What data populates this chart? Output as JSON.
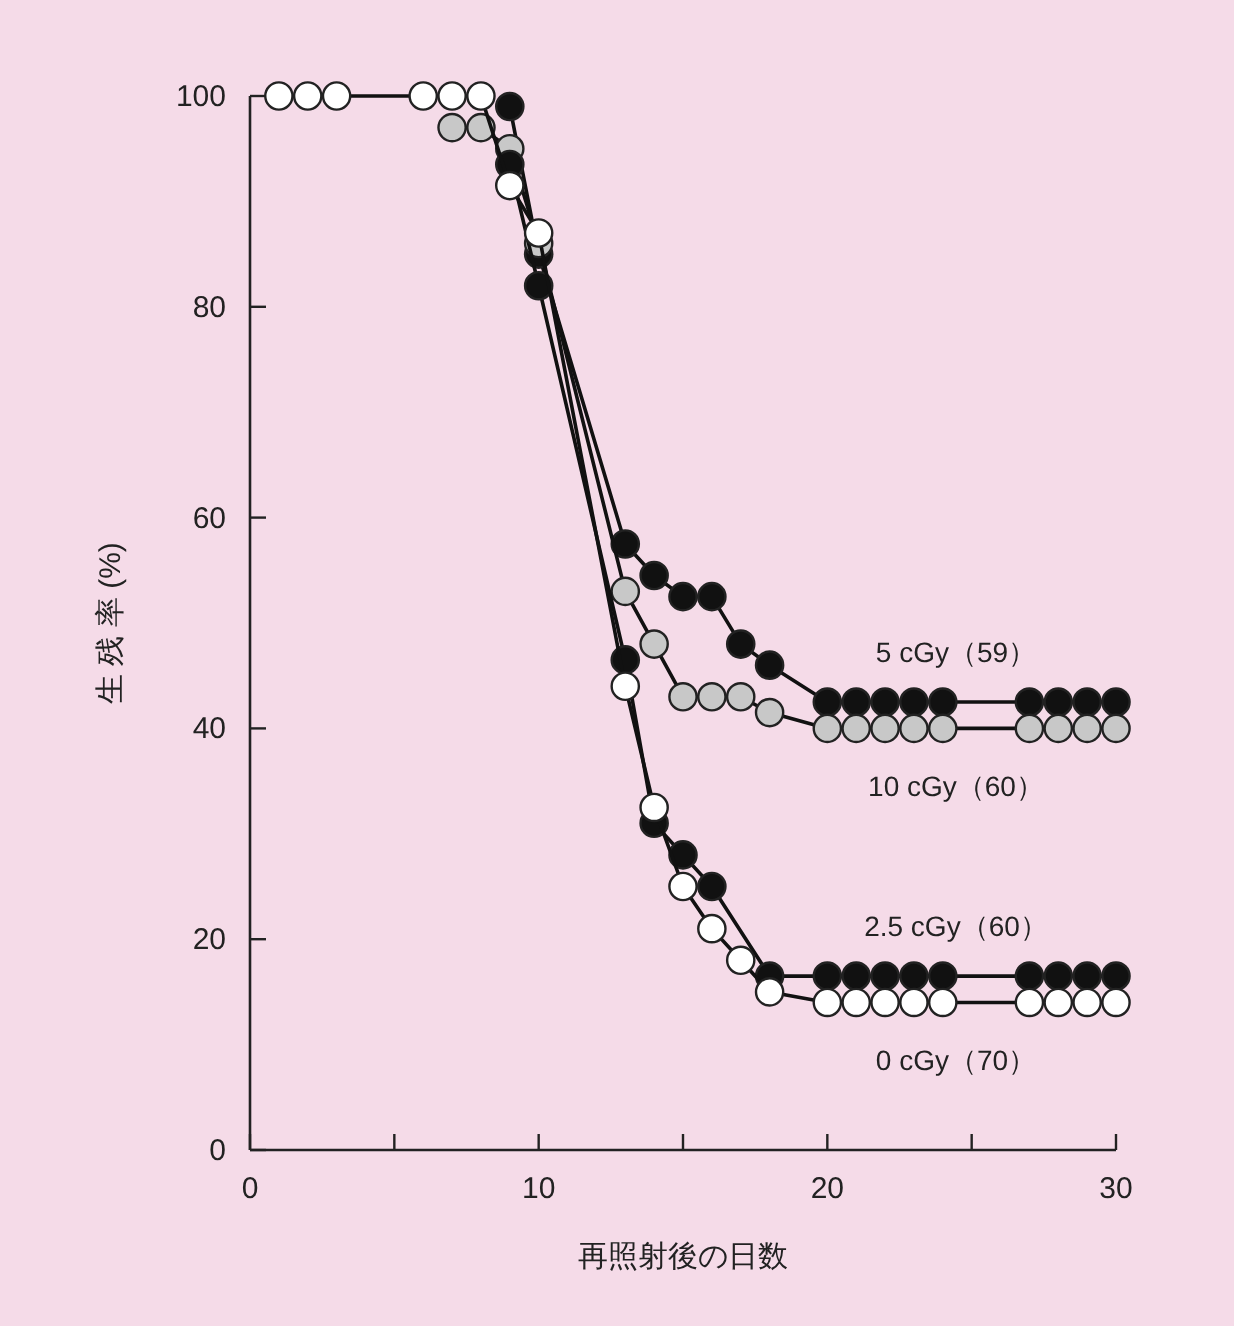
{
  "chart_data": {
    "type": "line",
    "xlabel": "再照射後の日数",
    "ylabel": "生 残 率 (%)",
    "x": [
      1,
      2,
      3,
      6,
      7,
      8,
      9,
      10,
      13,
      14,
      15,
      16,
      17,
      18,
      20,
      21,
      22,
      23,
      24,
      27,
      28,
      29,
      30
    ],
    "xlim": [
      0,
      30
    ],
    "ylim": [
      0,
      100
    ],
    "xticks": [
      0,
      {
        "value": 5,
        "label": null
      },
      10,
      {
        "value": 15,
        "label": null
      },
      20,
      {
        "value": 25,
        "label": null
      },
      30
    ],
    "yticks": [
      0,
      20,
      40,
      60,
      80,
      100
    ],
    "marker": "circle",
    "grid": false,
    "series": [
      {
        "name": "5 cGy（59）",
        "color": "#111111",
        "values": [
          null,
          null,
          null,
          null,
          null,
          null,
          99,
          85,
          57.5,
          54.5,
          52.5,
          52.5,
          48,
          46,
          42.5,
          42.5,
          42.5,
          42.5,
          42.5,
          42.5,
          42.5,
          42.5,
          42.5
        ]
      },
      {
        "name": "10 cGy（60）",
        "color": "#c8c8c8",
        "values": [
          null,
          null,
          null,
          null,
          97,
          97,
          95,
          86,
          53,
          48,
          43,
          43,
          43,
          41.5,
          40,
          40,
          40,
          40,
          40,
          40,
          40,
          40,
          40
        ]
      },
      {
        "name": "2.5 cGy（60）",
        "color": "#111111",
        "values": [
          null,
          null,
          null,
          null,
          null,
          null,
          93.5,
          82,
          46.5,
          31,
          28,
          25,
          null,
          16.5,
          16.5,
          16.5,
          16.5,
          16.5,
          16.5,
          16.5,
          16.5,
          16.5,
          16.5
        ]
      },
      {
        "name": "0 cGy（70）",
        "color": "#ffffff",
        "values": [
          100,
          100,
          100,
          100,
          100,
          100,
          91.5,
          87,
          44,
          32.5,
          25,
          21,
          18,
          15,
          14,
          14,
          14,
          14,
          14,
          14,
          14,
          14,
          14
        ]
      }
    ]
  }
}
